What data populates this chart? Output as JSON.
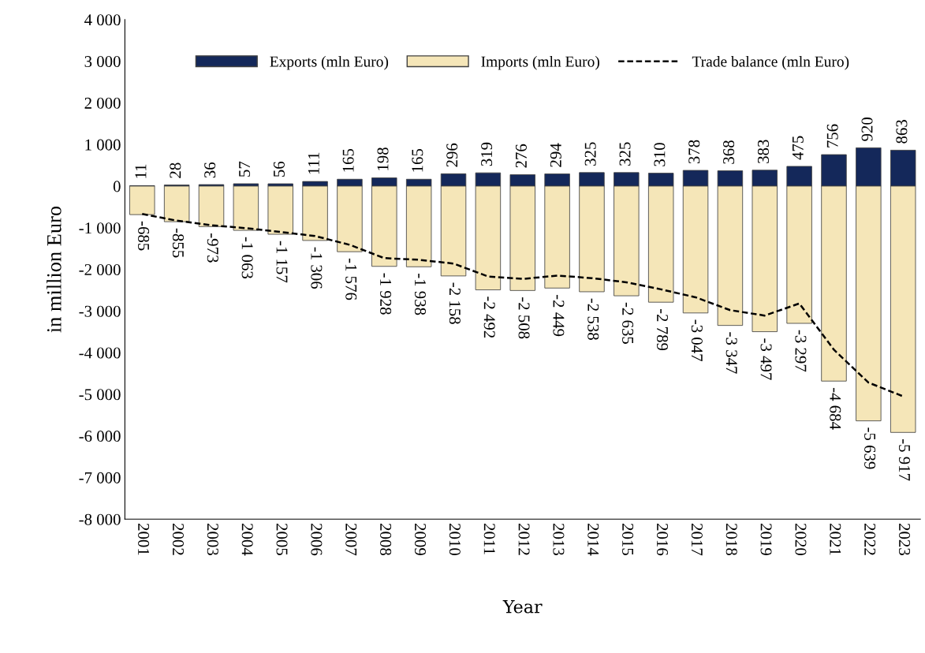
{
  "chart_data": {
    "type": "bar",
    "xlabel": "Year",
    "ylabel": "in million Euro",
    "categories": [
      "2001",
      "2002",
      "2003",
      "2004",
      "2005",
      "2006",
      "2007",
      "2008",
      "2009",
      "2010",
      "2011",
      "2012",
      "2013",
      "2014",
      "2015",
      "2016",
      "2017",
      "2018",
      "2019",
      "2020",
      "2021",
      "2022",
      "2023"
    ],
    "series": [
      {
        "name": "Exports (mln Euro)",
        "color": "#14285a",
        "values": [
          11,
          28,
          36,
          57,
          56,
          111,
          165,
          198,
          165,
          296,
          319,
          276,
          294,
          325,
          325,
          310,
          378,
          368,
          383,
          475,
          756,
          920,
          863
        ],
        "value_labels": [
          "11",
          "28",
          "36",
          "57",
          "56",
          "111",
          "165",
          "198",
          "165",
          "296",
          "319",
          "276",
          "294",
          "325",
          "325",
          "310",
          "378",
          "368",
          "383",
          "475",
          "756",
          "920",
          "863"
        ]
      },
      {
        "name": "Imports (mln Euro)",
        "color": "#f5e6b8",
        "values": [
          -685,
          -855,
          -973,
          -1063,
          -1157,
          -1306,
          -1576,
          -1928,
          -1938,
          -2158,
          -2492,
          -2508,
          -2449,
          -2538,
          -2635,
          -2789,
          -3047,
          -3347,
          -3497,
          -3297,
          -4684,
          -5639,
          -5917
        ],
        "value_labels": [
          "-685",
          "-855",
          "-973",
          "-1 063",
          "-1 157",
          "-1 306",
          "-1 576",
          "-1 928",
          "-1 938",
          "-2 158",
          "-2 492",
          "-2 508",
          "-2 449",
          "-2 538",
          "-2 635",
          "-2 789",
          "-3 047",
          "-3 347",
          "-3 497",
          "-3 297",
          "-4 684",
          "-5 639",
          "-5 917"
        ]
      },
      {
        "name": "Trade balance (mln Euro)",
        "type": "line",
        "color": "#000000",
        "line_style": "dashed",
        "values": [
          -670,
          -830,
          -940,
          -1010,
          -1100,
          -1200,
          -1410,
          -1730,
          -1770,
          -1860,
          -2170,
          -2230,
          -2150,
          -2210,
          -2310,
          -2480,
          -2670,
          -2980,
          -3110,
          -2820,
          -3930,
          -4720,
          -5050
        ]
      }
    ],
    "ylim": [
      -8000,
      4000
    ],
    "yticks": [
      {
        "value": -8000,
        "label": "-8 000"
      },
      {
        "value": -7000,
        "label": "-7 000"
      },
      {
        "value": -6000,
        "label": "-6 000"
      },
      {
        "value": -5000,
        "label": "-5 000"
      },
      {
        "value": -4000,
        "label": "-4 000"
      },
      {
        "value": -3000,
        "label": "-3 000"
      },
      {
        "value": -2000,
        "label": "-2 000"
      },
      {
        "value": -1000,
        "label": "-1 000"
      },
      0,
      {
        "value": 1000,
        "label": "1 000"
      },
      {
        "value": 2000,
        "label": "2 000"
      },
      {
        "value": 3000,
        "label": "3 000"
      },
      {
        "value": 4000,
        "label": "4 000"
      }
    ],
    "stacked": true,
    "grid": false,
    "legend": "top"
  }
}
